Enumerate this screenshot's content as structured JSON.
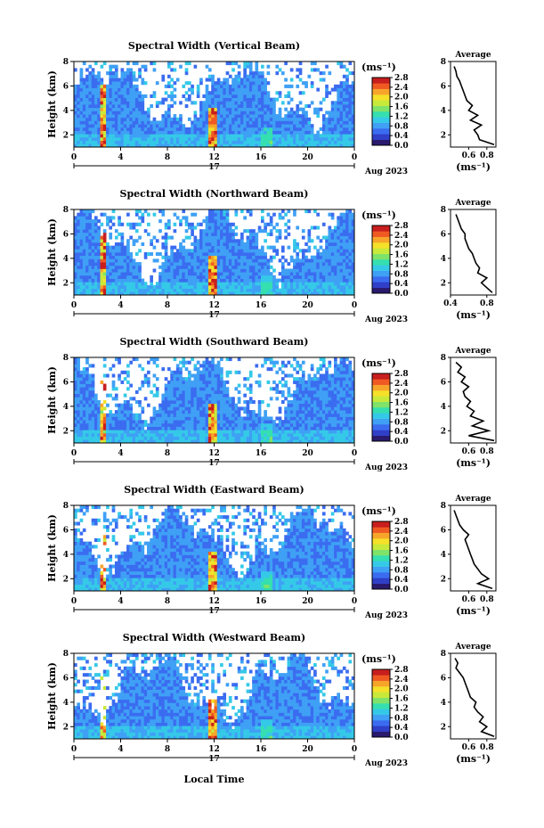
{
  "figure": {
    "xlabel": "Local Time",
    "colorbar_unit_label": "(ms⁻¹)",
    "profile_title": "Average",
    "profile_xlabel": "(ms⁻¹)",
    "date_label": "Aug 2023",
    "day_label": "17",
    "ylabel": "Height (km)",
    "colormap": [
      "#2a1a6e",
      "#2f3fc8",
      "#3b6cf0",
      "#3fa0f5",
      "#35c9e8",
      "#35dfb0",
      "#7fe36a",
      "#c8e93a",
      "#f5e02a",
      "#f7a52a",
      "#ef5a23",
      "#c81e1e"
    ]
  },
  "chart_data": [
    {
      "type": "heatmap",
      "title": "Spectral Width (Vertical Beam)",
      "x_ticks": [
        "0",
        "4",
        "8",
        "12",
        "16",
        "20",
        "0"
      ],
      "y_ticks": [
        "2",
        "4",
        "6",
        "8"
      ],
      "xlim": [
        0,
        24
      ],
      "ylim": [
        1,
        8
      ],
      "colorbar_ticks": [
        "0.0",
        "0.4",
        "0.8",
        "1.2",
        "1.6",
        "2.0",
        "2.4",
        "2.8"
      ],
      "colorbar_range": [
        0,
        2.8
      ],
      "profile": {
        "title": "Average",
        "x_ticks": [
          "0.6",
          "0.8"
        ],
        "y_ticks": [
          "2",
          "4",
          "6",
          "8"
        ],
        "xlim": [
          0.4,
          0.9
        ],
        "ylim": [
          1,
          8
        ],
        "height": [
          1.2,
          1.6,
          2.0,
          2.4,
          2.8,
          3.2,
          3.6,
          4.0,
          4.4,
          4.8,
          5.2,
          5.6,
          6.0,
          6.4,
          6.8,
          7.2,
          7.6
        ],
        "value": [
          0.88,
          0.72,
          0.7,
          0.66,
          0.74,
          0.62,
          0.7,
          0.6,
          0.64,
          0.58,
          0.56,
          0.54,
          0.52,
          0.5,
          0.47,
          0.46,
          0.44
        ]
      }
    },
    {
      "type": "heatmap",
      "title": "Spectral Width (Northward Beam)",
      "x_ticks": [
        "0",
        "4",
        "8",
        "12",
        "16",
        "20",
        "0"
      ],
      "y_ticks": [
        "2",
        "4",
        "6",
        "8"
      ],
      "xlim": [
        0,
        24
      ],
      "ylim": [
        1,
        8
      ],
      "colorbar_ticks": [
        "0.0",
        "0.4",
        "0.8",
        "1.2",
        "1.6",
        "2.0",
        "2.4",
        "2.8"
      ],
      "colorbar_range": [
        0,
        2.8
      ],
      "profile": {
        "title": "Average",
        "x_ticks": [
          "0.4",
          "0.8"
        ],
        "y_ticks": [
          "2",
          "4",
          "6",
          "8"
        ],
        "xlim": [
          0.4,
          0.9
        ],
        "ylim": [
          1,
          8
        ],
        "height": [
          1.2,
          1.6,
          2.0,
          2.4,
          2.8,
          3.2,
          3.6,
          4.0,
          4.4,
          4.8,
          5.2,
          5.6,
          6.0,
          6.4,
          6.8,
          7.2,
          7.6
        ],
        "value": [
          0.86,
          0.8,
          0.74,
          0.8,
          0.7,
          0.72,
          0.68,
          0.66,
          0.64,
          0.6,
          0.58,
          0.56,
          0.56,
          0.52,
          0.5,
          0.48,
          0.46
        ]
      }
    },
    {
      "type": "heatmap",
      "title": "Spectral Width (Southward Beam)",
      "x_ticks": [
        "0",
        "4",
        "8",
        "12",
        "16",
        "20",
        "0"
      ],
      "y_ticks": [
        "2",
        "4",
        "6",
        "8"
      ],
      "xlim": [
        0,
        24
      ],
      "ylim": [
        1,
        8
      ],
      "colorbar_ticks": [
        "0.0",
        "0.4",
        "0.8",
        "1.2",
        "1.6",
        "2.0",
        "2.4",
        "2.8"
      ],
      "colorbar_range": [
        0,
        2.8
      ],
      "profile": {
        "title": "Average",
        "x_ticks": [
          "0.6",
          "0.8"
        ],
        "y_ticks": [
          "2",
          "4",
          "6",
          "8"
        ],
        "xlim": [
          0.4,
          0.9
        ],
        "ylim": [
          1,
          8
        ],
        "height": [
          1.2,
          1.6,
          2.0,
          2.4,
          2.8,
          3.2,
          3.6,
          4.0,
          4.4,
          4.8,
          5.2,
          5.6,
          6.0,
          6.4,
          6.8,
          7.2,
          7.6
        ],
        "value": [
          0.88,
          0.6,
          0.82,
          0.64,
          0.76,
          0.62,
          0.66,
          0.58,
          0.62,
          0.56,
          0.54,
          0.6,
          0.52,
          0.56,
          0.48,
          0.52,
          0.46
        ]
      }
    },
    {
      "type": "heatmap",
      "title": "Spectral Width (Eastward Beam)",
      "x_ticks": [
        "0",
        "4",
        "8",
        "12",
        "16",
        "20",
        "0"
      ],
      "y_ticks": [
        "2",
        "4",
        "6",
        "8"
      ],
      "xlim": [
        0,
        24
      ],
      "ylim": [
        1,
        8
      ],
      "colorbar_ticks": [
        "0.0",
        "0.4",
        "0.8",
        "1.2",
        "1.6",
        "2.0",
        "2.4",
        "2.8"
      ],
      "colorbar_range": [
        0,
        2.8
      ],
      "profile": {
        "title": "Average",
        "x_ticks": [
          "0.6",
          "0.8"
        ],
        "y_ticks": [
          "2",
          "4",
          "6",
          "8"
        ],
        "xlim": [
          0.4,
          0.9
        ],
        "ylim": [
          1,
          8
        ],
        "height": [
          1.2,
          1.6,
          2.0,
          2.4,
          2.8,
          3.2,
          3.6,
          4.0,
          4.4,
          4.8,
          5.2,
          5.6,
          6.0,
          6.4,
          6.8,
          7.2,
          7.6
        ],
        "value": [
          0.86,
          0.7,
          0.82,
          0.74,
          0.7,
          0.66,
          0.64,
          0.62,
          0.6,
          0.58,
          0.56,
          0.6,
          0.54,
          0.5,
          0.48,
          0.46,
          0.44
        ]
      }
    },
    {
      "type": "heatmap",
      "title": "Spectral Width (Westward Beam)",
      "x_ticks": [
        "0",
        "4",
        "8",
        "12",
        "16",
        "20",
        "0"
      ],
      "y_ticks": [
        "2",
        "4",
        "6",
        "8"
      ],
      "xlim": [
        0,
        24
      ],
      "ylim": [
        1,
        8
      ],
      "colorbar_ticks": [
        "0.0",
        "0.4",
        "0.8",
        "1.2",
        "1.6",
        "2.0",
        "2.4",
        "2.8"
      ],
      "colorbar_range": [
        0,
        2.8
      ],
      "profile": {
        "title": "Average",
        "x_ticks": [
          "0.6",
          "0.8"
        ],
        "y_ticks": [
          "2",
          "4",
          "6",
          "8"
        ],
        "xlim": [
          0.4,
          0.9
        ],
        "ylim": [
          1,
          8
        ],
        "height": [
          1.2,
          1.6,
          2.0,
          2.4,
          2.8,
          3.2,
          3.6,
          4.0,
          4.4,
          4.8,
          5.2,
          5.6,
          6.0,
          6.4,
          6.8,
          7.2,
          7.6
        ],
        "value": [
          0.88,
          0.74,
          0.8,
          0.72,
          0.76,
          0.7,
          0.66,
          0.68,
          0.62,
          0.6,
          0.58,
          0.56,
          0.54,
          0.5,
          0.46,
          0.48,
          0.45
        ]
      }
    }
  ]
}
